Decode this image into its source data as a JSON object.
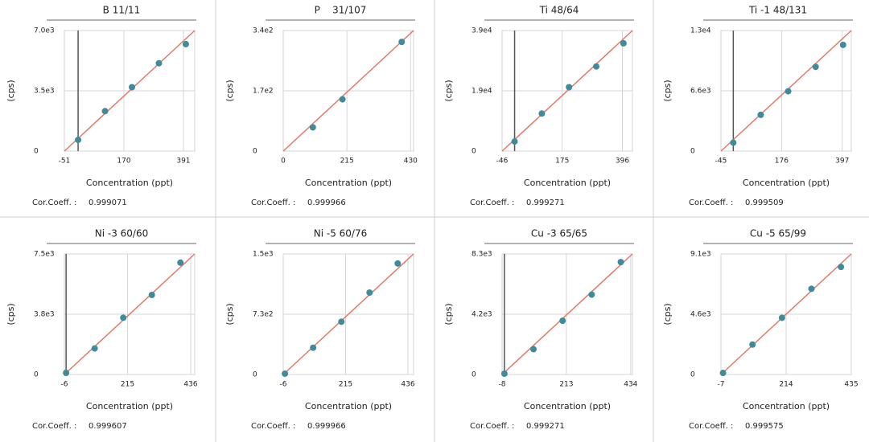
{
  "chart_data": [
    {
      "type": "scatter",
      "title": "B 11/11",
      "xlabel": "Concentration (ppt)",
      "ylabel": "(cps)",
      "x": [
        0,
        100,
        200,
        300,
        400
      ],
      "values": [
        650,
        2320,
        3710,
        5100,
        6210
      ],
      "xlim": [
        -51,
        433
      ],
      "ylim": [
        0,
        7000
      ],
      "xticks": [
        -51,
        170,
        391
      ],
      "yticks": [
        0,
        {
          "value": 3500,
          "label": "3.5e3"
        },
        {
          "value": 7000,
          "label": "7.0e3"
        }
      ],
      "fit": {
        "x": [
          -51,
          433
        ],
        "y": [
          0,
          7000
        ]
      },
      "cor_label": "Cor.Coeff. :",
      "cor": 0.999071,
      "zero_line": true,
      "grid": true,
      "point_color": "#3d8b9b",
      "fit_color": "#e07a65"
    },
    {
      "type": "scatter",
      "title": "P    31/107",
      "xlabel": "Concentration (ppt)",
      "ylabel": "(cps)",
      "x": [
        100,
        200,
        400
      ],
      "values": [
        67,
        146,
        308
      ],
      "xlim": [
        0,
        440
      ],
      "ylim": [
        0,
        340
      ],
      "xticks": [
        0,
        215,
        430
      ],
      "yticks": [
        0,
        {
          "value": 170,
          "label": "1.7e2"
        },
        {
          "value": 340,
          "label": "3.4e2"
        }
      ],
      "fit": {
        "x": [
          0,
          440
        ],
        "y": [
          0,
          340
        ]
      },
      "cor_label": "Cor.Coeff. :",
      "cor": 0.999966,
      "zero_line": false,
      "grid": true,
      "point_color": "#3d8b9b",
      "fit_color": "#e07a65"
    },
    {
      "type": "scatter",
      "title": "Ti 48/64",
      "xlabel": "Concentration (ppt)",
      "ylabel": "(cps)",
      "x": [
        0,
        100,
        200,
        300,
        400
      ],
      "values": [
        3080,
        12080,
        20560,
        27240,
        34690
      ],
      "xlim": [
        -46,
        433
      ],
      "ylim": [
        0,
        38800
      ],
      "xticks": [
        -46,
        175,
        396
      ],
      "yticks": [
        0,
        {
          "value": 19400,
          "label": "1.9e4"
        },
        {
          "value": 38800,
          "label": "3.9e4"
        }
      ],
      "fit": {
        "x": [
          -46,
          433
        ],
        "y": [
          0,
          38800
        ]
      },
      "cor_label": "Cor.Coeff. :",
      "cor": 0.999271,
      "zero_line": true,
      "grid": true,
      "point_color": "#3d8b9b",
      "fit_color": "#e07a65"
    },
    {
      "type": "scatter",
      "title": "Ti -1 48/131",
      "xlabel": "Concentration (ppt)",
      "ylabel": "(cps)",
      "x": [
        0,
        100,
        200,
        300,
        400
      ],
      "values": [
        920,
        3970,
        6550,
        9230,
        11630
      ],
      "xlim": [
        -45,
        430
      ],
      "ylim": [
        0,
        13200
      ],
      "xticks": [
        -45,
        176,
        397
      ],
      "yticks": [
        0,
        {
          "value": 6600,
          "label": "6.6e3"
        },
        {
          "value": 13200,
          "label": "1.3e4"
        }
      ],
      "fit": {
        "x": [
          -45,
          430
        ],
        "y": [
          0,
          13200
        ]
      },
      "cor_label": "Cor.Coeff. :",
      "cor": 0.999509,
      "zero_line": true,
      "grid": true,
      "point_color": "#3d8b9b",
      "fit_color": "#e07a65"
    },
    {
      "type": "scatter",
      "title": "Ni -3 60/60",
      "xlabel": "Concentration (ppt)",
      "ylabel": "(cps)",
      "x": [
        0,
        100,
        200,
        300,
        400
      ],
      "values": [
        100,
        1620,
        3530,
        4950,
        6960
      ],
      "xlim": [
        -6,
        450
      ],
      "ylim": [
        0,
        7500
      ],
      "xticks": [
        -6,
        215,
        436
      ],
      "yticks": [
        0,
        {
          "value": 3750,
          "label": "3.8e3"
        },
        {
          "value": 7500,
          "label": "7.5e3"
        }
      ],
      "fit": {
        "x": [
          -6,
          450
        ],
        "y": [
          0,
          7500
        ]
      },
      "cor_label": "Cor.Coeff. :",
      "cor": 0.999607,
      "zero_line": true,
      "grid": true,
      "point_color": "#3d8b9b",
      "fit_color": "#e07a65"
    },
    {
      "type": "scatter",
      "title": "Ni -5 60/76",
      "xlabel": "Concentration (ppt)",
      "ylabel": "(cps)",
      "x": [
        0,
        100,
        200,
        300,
        400
      ],
      "values": [
        10,
        324,
        639,
        992,
        1345
      ],
      "xlim": [
        -6,
        456
      ],
      "ylim": [
        0,
        1460
      ],
      "xticks": [
        -6,
        215,
        436
      ],
      "yticks": [
        0,
        {
          "value": 730,
          "label": "7.3e2"
        },
        {
          "value": 1460,
          "label": "1.5e3"
        }
      ],
      "fit": {
        "x": [
          -6,
          456
        ],
        "y": [
          0,
          1460
        ]
      },
      "cor_label": "Cor.Coeff. :",
      "cor": 0.999966,
      "zero_line": false,
      "grid": true,
      "point_color": "#3d8b9b",
      "fit_color": "#e07a65"
    },
    {
      "type": "scatter",
      "title": "Cu -3 65/65",
      "xlabel": "Concentration (ppt)",
      "ylabel": "(cps)",
      "x": [
        0,
        100,
        200,
        300,
        400
      ],
      "values": [
        56,
        1740,
        3700,
        5500,
        7740
      ],
      "xlim": [
        -8,
        440
      ],
      "ylim": [
        0,
        8300
      ],
      "xticks": [
        -8,
        213,
        434
      ],
      "yticks": [
        0,
        {
          "value": 4150,
          "label": "4.2e3"
        },
        {
          "value": 8300,
          "label": "8.3e3"
        }
      ],
      "fit": {
        "x": [
          -8,
          440
        ],
        "y": [
          0,
          8300
        ]
      },
      "cor_label": "Cor.Coeff. :",
      "cor": 0.999271,
      "zero_line": true,
      "grid": true,
      "point_color": "#3d8b9b",
      "fit_color": "#e07a65"
    },
    {
      "type": "scatter",
      "title": "Cu -5 65/99",
      "xlabel": "Concentration (ppt)",
      "ylabel": "(cps)",
      "x": [
        0,
        100,
        200,
        300,
        400
      ],
      "values": [
        120,
        2260,
        4280,
        6470,
        8120
      ],
      "xlim": [
        -7,
        435
      ],
      "ylim": [
        0,
        9100
      ],
      "xticks": [
        -7,
        214,
        435
      ],
      "yticks": [
        0,
        {
          "value": 4550,
          "label": "4.6e3"
        },
        {
          "value": 9100,
          "label": "9.1e3"
        }
      ],
      "fit": {
        "x": [
          -7,
          435
        ],
        "y": [
          0,
          9100
        ]
      },
      "cor_label": "Cor.Coeff. :",
      "cor": 0.999575,
      "zero_line": false,
      "grid": true,
      "point_color": "#3d8b9b",
      "fit_color": "#e07a65"
    }
  ]
}
